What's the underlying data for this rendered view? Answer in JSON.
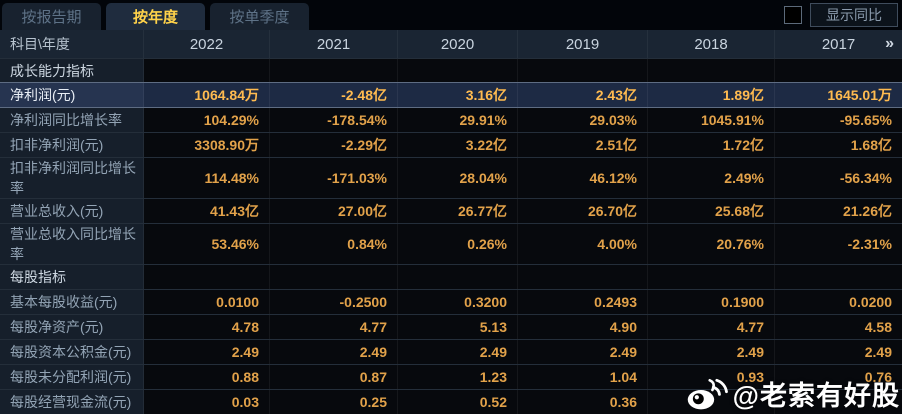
{
  "tabs": [
    {
      "label": "按报告期",
      "active": false
    },
    {
      "label": "按年度",
      "active": true
    },
    {
      "label": "按单季度",
      "active": false
    }
  ],
  "controls": {
    "show_yoy_label": "显示同比",
    "checkbox_checked": false
  },
  "table": {
    "corner_label": "科目\\年度",
    "years": [
      "2022",
      "2021",
      "2020",
      "2019",
      "2018",
      "2017"
    ],
    "more_columns_glyph": "»",
    "rows": [
      {
        "type": "section",
        "label": "成长能力指标",
        "values": [
          "",
          "",
          "",
          "",
          "",
          ""
        ]
      },
      {
        "type": "data",
        "label": "净利润(元)",
        "highlight": true,
        "values": [
          "1064.84万",
          "-2.48亿",
          "3.16亿",
          "2.43亿",
          "1.89亿",
          "1645.01万"
        ]
      },
      {
        "type": "data",
        "label": "净利润同比增长率",
        "values": [
          "104.29%",
          "-178.54%",
          "29.91%",
          "29.03%",
          "1045.91%",
          "-95.65%"
        ]
      },
      {
        "type": "data",
        "label": "扣非净利润(元)",
        "values": [
          "3308.90万",
          "-2.29亿",
          "3.22亿",
          "2.51亿",
          "1.72亿",
          "1.68亿"
        ]
      },
      {
        "type": "data",
        "label": "扣非净利润同比增长率",
        "values": [
          "114.48%",
          "-171.03%",
          "28.04%",
          "46.12%",
          "2.49%",
          "-56.34%"
        ]
      },
      {
        "type": "data",
        "label": "营业总收入(元)",
        "values": [
          "41.43亿",
          "27.00亿",
          "26.77亿",
          "26.70亿",
          "25.68亿",
          "21.26亿"
        ]
      },
      {
        "type": "data",
        "label": "营业总收入同比增长率",
        "values": [
          "53.46%",
          "0.84%",
          "0.26%",
          "4.00%",
          "20.76%",
          "-2.31%"
        ]
      },
      {
        "type": "section",
        "label": "每股指标",
        "values": [
          "",
          "",
          "",
          "",
          "",
          ""
        ]
      },
      {
        "type": "data",
        "label": "基本每股收益(元)",
        "values": [
          "0.0100",
          "-0.2500",
          "0.3200",
          "0.2493",
          "0.1900",
          "0.0200"
        ]
      },
      {
        "type": "data",
        "label": "每股净资产(元)",
        "values": [
          "4.78",
          "4.77",
          "5.13",
          "4.90",
          "4.77",
          "4.58"
        ]
      },
      {
        "type": "data",
        "label": "每股资本公积金(元)",
        "values": [
          "2.49",
          "2.49",
          "2.49",
          "2.49",
          "2.49",
          "2.49"
        ]
      },
      {
        "type": "data",
        "label": "每股未分配利润(元)",
        "values": [
          "0.88",
          "0.87",
          "1.23",
          "1.04",
          "0.93",
          "0.76"
        ]
      },
      {
        "type": "data",
        "label": "每股经营现金流(元)",
        "values": [
          "0.03",
          "0.25",
          "0.52",
          "0.36",
          "",
          ""
        ]
      }
    ]
  },
  "watermark": {
    "icon": "weibo-icon",
    "text": "@老索有好股"
  },
  "colors": {
    "value_gold": "#e2a24a",
    "highlight_gold": "#ffbb50",
    "active_tab_text": "#ffd24a",
    "header_bg": "#1a2533",
    "label_bg": "#161f2b",
    "highlight_row_bg": "#1d2a44",
    "cell_bg": "#07090d"
  }
}
